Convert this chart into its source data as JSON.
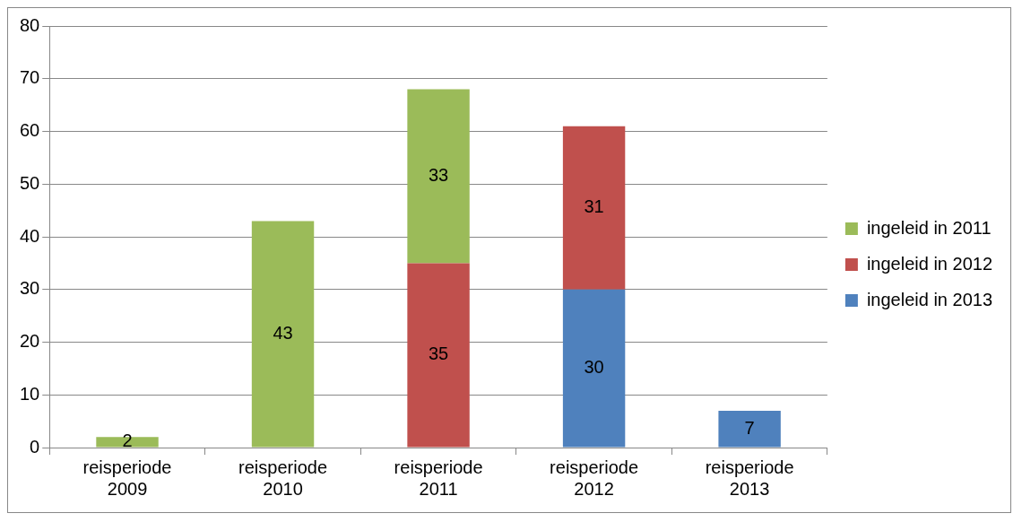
{
  "chart_data": {
    "type": "bar",
    "stacked": true,
    "categories": [
      "reisperiode 2009",
      "reisperiode 2010",
      "reisperiode 2011",
      "reisperiode 2012",
      "reisperiode 2013"
    ],
    "series": [
      {
        "name": "ingeleid in 2013",
        "color": "#4f81bd",
        "values": [
          null,
          null,
          null,
          30,
          7
        ]
      },
      {
        "name": "ingeleid in 2012",
        "color": "#c0504d",
        "values": [
          null,
          null,
          35,
          31,
          null
        ]
      },
      {
        "name": "ingeleid in 2011",
        "color": "#9bbb59",
        "values": [
          2,
          43,
          33,
          null,
          null
        ]
      }
    ],
    "ylim": [
      0,
      80
    ],
    "yticks": [
      0,
      10,
      20,
      30,
      40,
      50,
      60,
      70,
      80
    ],
    "grid": "y",
    "legend": "right",
    "data_labels": true
  }
}
